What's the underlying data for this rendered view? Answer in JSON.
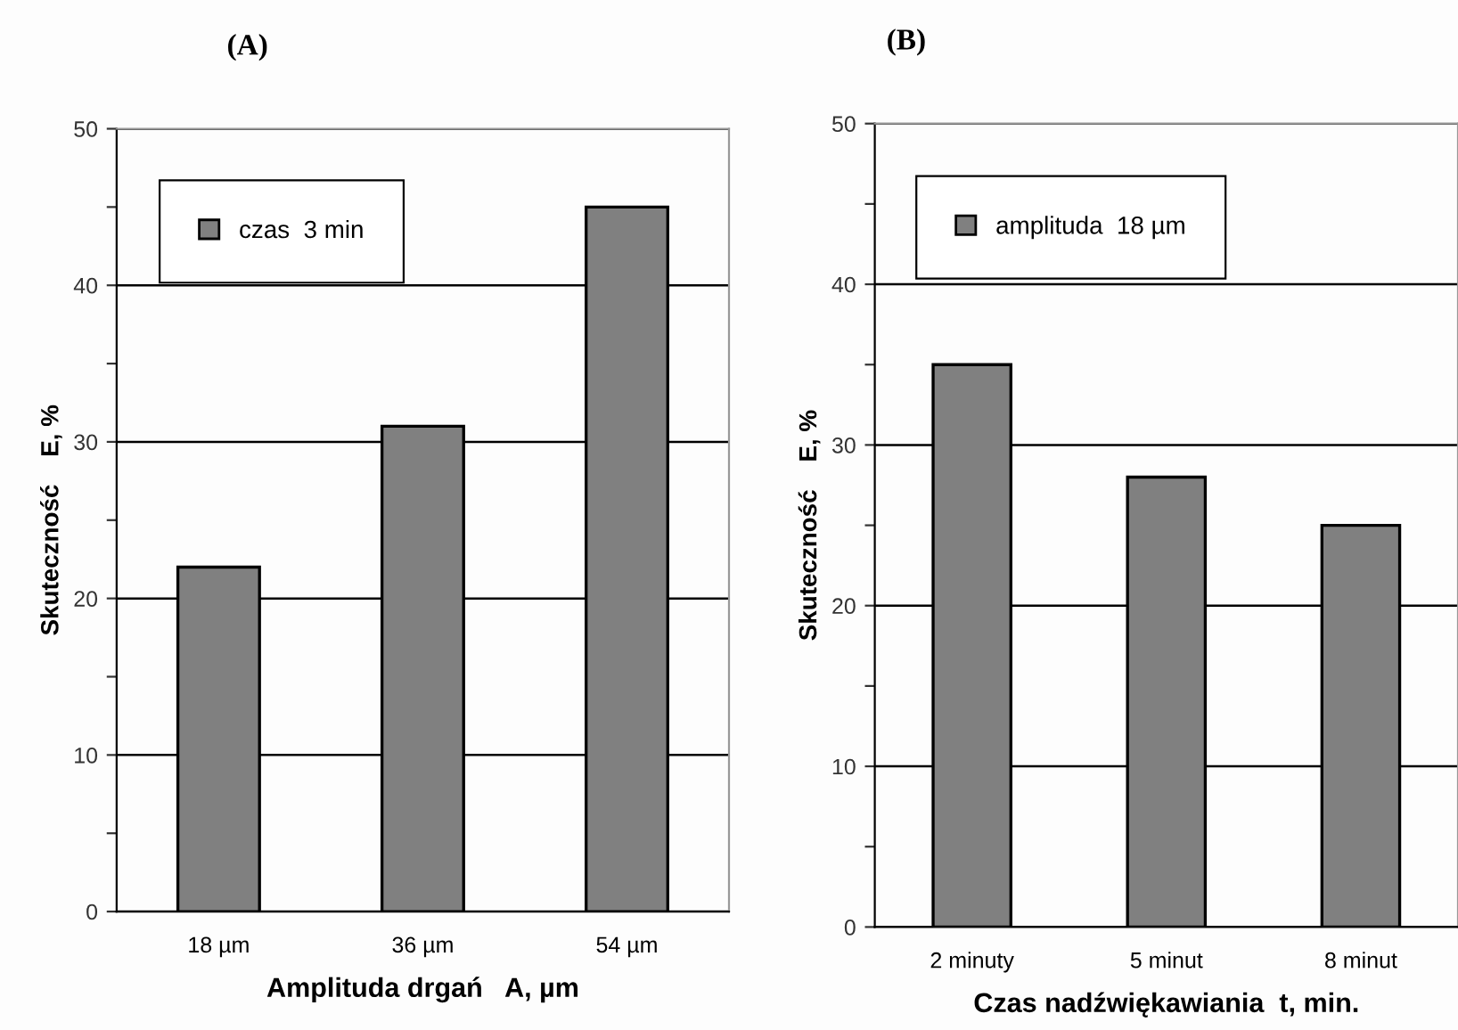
{
  "chart_data": [
    {
      "type": "bar",
      "title": "(A)",
      "xlabel": "Amplituda drgań   A, µm",
      "ylabel": "Skuteczność    E, %",
      "categories": [
        "18 µm",
        "36 µm",
        "54 µm"
      ],
      "series": [
        {
          "name": "czas  3 min",
          "color": "#808080",
          "values": [
            22,
            31,
            45
          ]
        }
      ],
      "ylim": [
        0,
        50
      ],
      "yticks": [
        0,
        {
          "value": 5,
          "label": null
        },
        10,
        {
          "value": 15,
          "label": null
        },
        20,
        {
          "value": 25,
          "label": null
        },
        30,
        {
          "value": 35,
          "label": null
        },
        40,
        {
          "value": 45,
          "label": null
        },
        50
      ],
      "grid": "y",
      "legend": "top left"
    },
    {
      "type": "bar",
      "title": "(B)",
      "xlabel": "Czas nadźwiękawiania  t, min.",
      "ylabel": "Skuteczność    E, %",
      "categories": [
        "2 minuty",
        "5 minut",
        "8 minut"
      ],
      "series": [
        {
          "name": "amplituda  18 µm",
          "color": "#808080",
          "values": [
            35,
            28,
            25
          ]
        }
      ],
      "ylim": [
        0,
        50
      ],
      "yticks": [
        0,
        {
          "value": 5,
          "label": null
        },
        10,
        {
          "value": 15,
          "label": null
        },
        20,
        {
          "value": 25,
          "label": null
        },
        30,
        {
          "value": 35,
          "label": null
        },
        40,
        {
          "value": 45,
          "label": null
        },
        50
      ],
      "grid": "y",
      "legend": "top left"
    }
  ]
}
